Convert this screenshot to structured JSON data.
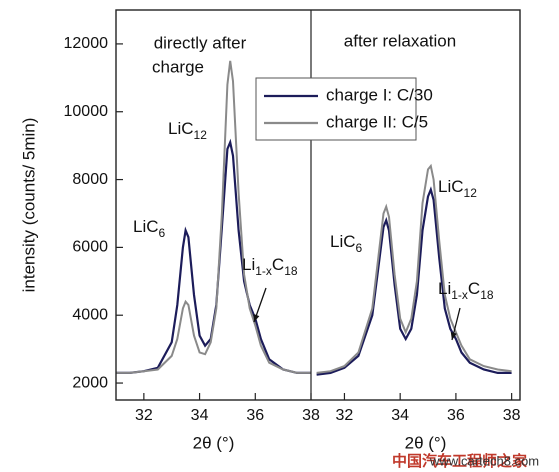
{
  "chart_data": [
    {
      "type": "line",
      "title": [
        "directly after",
        "charge"
      ],
      "xlabel": "2θ (°)",
      "ylabel": "intensity (counts/ 5min)",
      "xlim": [
        31,
        38
      ],
      "xticks": [
        32,
        34,
        36,
        38
      ],
      "ylim": [
        1500,
        13000
      ],
      "yticks": [
        2000,
        4000,
        6000,
        8000,
        10000,
        12000
      ],
      "x": [
        31,
        31.5,
        32,
        32.5,
        33,
        33.2,
        33.4,
        33.5,
        33.6,
        33.8,
        34,
        34.2,
        34.4,
        34.6,
        34.8,
        35,
        35.1,
        35.2,
        35.4,
        35.6,
        35.8,
        36,
        36.2,
        36.5,
        37,
        37.5,
        38
      ],
      "series": [
        {
          "name": "charge I: C/30",
          "color": "#1c1c5a",
          "values": [
            2300,
            2300,
            2350,
            2450,
            3200,
            4300,
            6000,
            6500,
            6300,
            4600,
            3400,
            3100,
            3300,
            4300,
            6600,
            8900,
            9100,
            8700,
            6500,
            5000,
            4300,
            3900,
            3300,
            2700,
            2400,
            2300,
            2300
          ]
        },
        {
          "name": "charge II: C/5",
          "color": "#8a8a8a",
          "values": [
            2300,
            2300,
            2350,
            2400,
            2800,
            3300,
            4200,
            4400,
            4300,
            3400,
            2900,
            2850,
            3200,
            4200,
            7000,
            10800,
            11500,
            10900,
            7600,
            5200,
            4200,
            3700,
            3100,
            2600,
            2400,
            2300,
            2300
          ]
        }
      ],
      "annotations": [
        [
          "LiC",
          "12"
        ],
        [
          "LiC",
          "6"
        ],
        [
          "Li",
          "1-x",
          "C",
          "18"
        ]
      ]
    },
    {
      "type": "line",
      "title": [
        "after relaxation"
      ],
      "xlabel": "2θ (°)",
      "xlim": [
        30.8,
        38.3
      ],
      "xticks": [
        32,
        34,
        36,
        38
      ],
      "ylim": [
        1500,
        13000
      ],
      "x": [
        31,
        31.5,
        32,
        32.5,
        33,
        33.2,
        33.4,
        33.5,
        33.6,
        33.8,
        34,
        34.2,
        34.4,
        34.6,
        34.8,
        35,
        35.1,
        35.2,
        35.4,
        35.6,
        35.8,
        36,
        36.2,
        36.5,
        37,
        37.5,
        38
      ],
      "series": [
        {
          "color": "#1c1c5a",
          "values": [
            2250,
            2300,
            2450,
            2800,
            4000,
            5300,
            6600,
            6800,
            6500,
            4900,
            3600,
            3300,
            3600,
            4600,
            6500,
            7500,
            7700,
            7400,
            5700,
            4200,
            3600,
            3300,
            2900,
            2600,
            2400,
            2300,
            2300
          ]
        },
        {
          "color": "#8a8a8a",
          "values": [
            2300,
            2350,
            2500,
            2900,
            4200,
            5600,
            7000,
            7200,
            6900,
            5200,
            3900,
            3500,
            3900,
            5000,
            7300,
            8300,
            8400,
            8000,
            6200,
            4600,
            3900,
            3500,
            3100,
            2700,
            2500,
            2400,
            2350
          ]
        }
      ],
      "annotations": [
        [
          "LiC",
          "6"
        ],
        [
          "LiC",
          "12"
        ],
        [
          "Li",
          "1-x",
          "C",
          "18"
        ]
      ]
    }
  ],
  "watermark": [
    "中国汽车工程师之家",
    "www.cartech8.com"
  ]
}
